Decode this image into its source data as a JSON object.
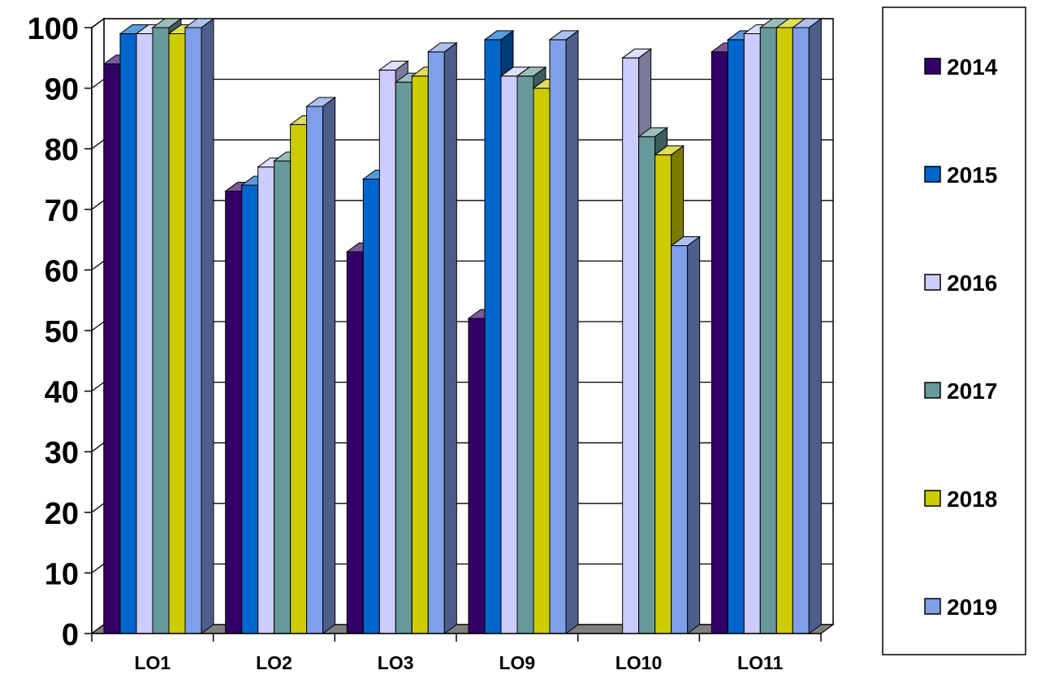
{
  "chart_data": {
    "type": "bar",
    "categories": [
      "LO1",
      "LO2",
      "LO3",
      "LO9",
      "LO10",
      "LO11"
    ],
    "series": [
      {
        "name": "2014",
        "color": "#330066",
        "values": [
          94,
          73,
          63,
          52,
          null,
          96
        ]
      },
      {
        "name": "2015",
        "color": "#0066CC",
        "values": [
          99,
          74,
          75,
          98,
          null,
          98
        ]
      },
      {
        "name": "2016",
        "color": "#CCCCFF",
        "values": [
          99,
          77,
          93,
          92,
          95,
          99
        ]
      },
      {
        "name": "2017",
        "color": "#669999",
        "values": [
          100,
          78,
          91,
          92,
          82,
          100
        ]
      },
      {
        "name": "2018",
        "color": "#CCCC00",
        "values": [
          99,
          84,
          92,
          90,
          79,
          100
        ]
      },
      {
        "name": "2019",
        "color": "#7F9FE8",
        "values": [
          100,
          87,
          96,
          98,
          64,
          100
        ]
      }
    ],
    "yticks": [
      "0",
      "10",
      "20",
      "30",
      "40",
      "50",
      "60",
      "70",
      "80",
      "90",
      "100"
    ],
    "ylim": [
      0,
      100
    ],
    "grid": true,
    "legend_position": "right",
    "three_d": true
  }
}
